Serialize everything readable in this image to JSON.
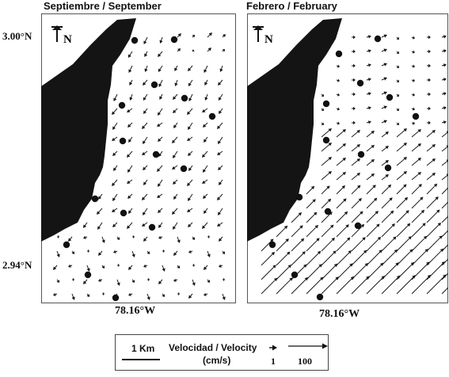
{
  "panels": [
    {
      "title": "Septiembre / September",
      "lon_label": "78.16°W",
      "north_label": "N",
      "season": "sep"
    },
    {
      "title": "Febrero / February",
      "lon_label": "78.16°W",
      "north_label": "N",
      "season": "feb"
    }
  ],
  "latitude_labels": {
    "top": "3.00°N",
    "bottom": "2.94°N"
  },
  "legend": {
    "scale_label": "1 Km",
    "velocity_label": "Velocidad / Velocity",
    "units_label": "(cm/s)",
    "small_value": "1",
    "large_value": "100"
  },
  "colors": {
    "land": "#141414",
    "arrow": "#1a1a1a",
    "frame": "#555555"
  }
}
